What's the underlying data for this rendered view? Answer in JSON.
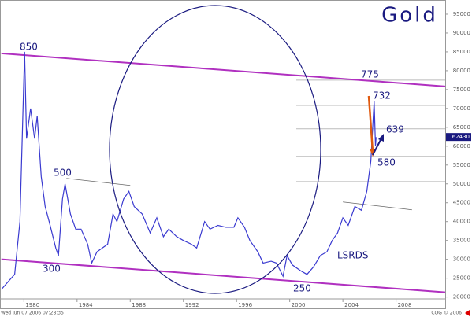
{
  "chart_data": {
    "type": "line",
    "title": "Gold",
    "x": [
      1978.3,
      1978.8,
      1979.3,
      1979.7,
      1980.05,
      1980.2,
      1980.5,
      1980.8,
      1981.0,
      1981.3,
      1981.6,
      1981.9,
      1982.4,
      1982.6,
      1982.9,
      1983.1,
      1983.5,
      1983.9,
      1984.3,
      1984.8,
      1985.1,
      1985.5,
      1985.9,
      1986.3,
      1986.7,
      1987.0,
      1987.5,
      1987.9,
      1988.3,
      1988.9,
      1989.5,
      1990.0,
      1990.5,
      1990.9,
      1991.5,
      1992.0,
      1992.6,
      1993.0,
      1993.6,
      1994.0,
      1994.6,
      1995.2,
      1995.8,
      1996.1,
      1996.6,
      1997.0,
      1997.6,
      1998.0,
      1998.6,
      1999.0,
      1999.5,
      1999.8,
      2000.2,
      2000.8,
      2001.3,
      2001.8,
      2002.3,
      2002.8,
      2003.2,
      2003.6,
      2004.0,
      2004.4,
      2004.9,
      2005.4,
      2005.8,
      2006.1,
      2006.35,
      2006.45,
      2006.5
    ],
    "series": [
      {
        "name": "Gold",
        "color": "#3a3ad0",
        "values": [
          22000,
          24000,
          26000,
          40000,
          85000,
          62000,
          70000,
          62000,
          68000,
          52000,
          44000,
          40000,
          33000,
          31000,
          46000,
          50000,
          42000,
          38000,
          38000,
          34000,
          29000,
          32000,
          33000,
          34000,
          42000,
          40000,
          46000,
          48000,
          44000,
          42000,
          37000,
          41000,
          36000,
          38000,
          36000,
          35000,
          34000,
          33000,
          40000,
          38000,
          39000,
          38500,
          38500,
          41000,
          38500,
          35000,
          32000,
          29000,
          29500,
          29000,
          25500,
          31000,
          28500,
          27000,
          26000,
          28000,
          31000,
          32000,
          35000,
          37000,
          41000,
          39000,
          44000,
          43000,
          48000,
          56000,
          72000,
          60000,
          62400
        ]
      }
    ],
    "xlim": [
      1978.2,
      2011.7
    ],
    "ylim": [
      19500,
      98750
    ],
    "xticks": [
      1980,
      1984,
      1988,
      1992,
      1996,
      2000,
      2004,
      2008
    ],
    "yticks": [
      20000,
      25000,
      30000,
      35000,
      40000,
      45000,
      50000,
      55000,
      60000,
      65000,
      70000,
      75000,
      80000,
      85000,
      90000,
      95000
    ],
    "trendlines": [
      {
        "color": "#b030c0",
        "x": [
          1978.3,
          2011.7
        ],
        "values": [
          84583,
          75833
        ]
      },
      {
        "color": "#b030c0",
        "x": [
          1978.3,
          2011.7
        ],
        "values": [
          30000,
          21250
        ]
      },
      {
        "color": "#666666",
        "x": [
          1983.2,
          1988.0
        ],
        "values": [
          51458,
          49583
        ]
      },
      {
        "color": "#666666",
        "x": [
          2004.0,
          2009.2
        ],
        "values": [
          45208,
          43125
        ]
      }
    ],
    "levels": [
      77500,
      70800,
      64600,
      57300,
      50600
    ],
    "last_price": 62430,
    "annotations": [
      "850",
      "500",
      "300",
      "775",
      "732",
      "639",
      "580",
      "250",
      "LSRDS"
    ],
    "timestamp": "Wed Jun 07 2006 07:28:35",
    "source": "CQG © 2006"
  }
}
